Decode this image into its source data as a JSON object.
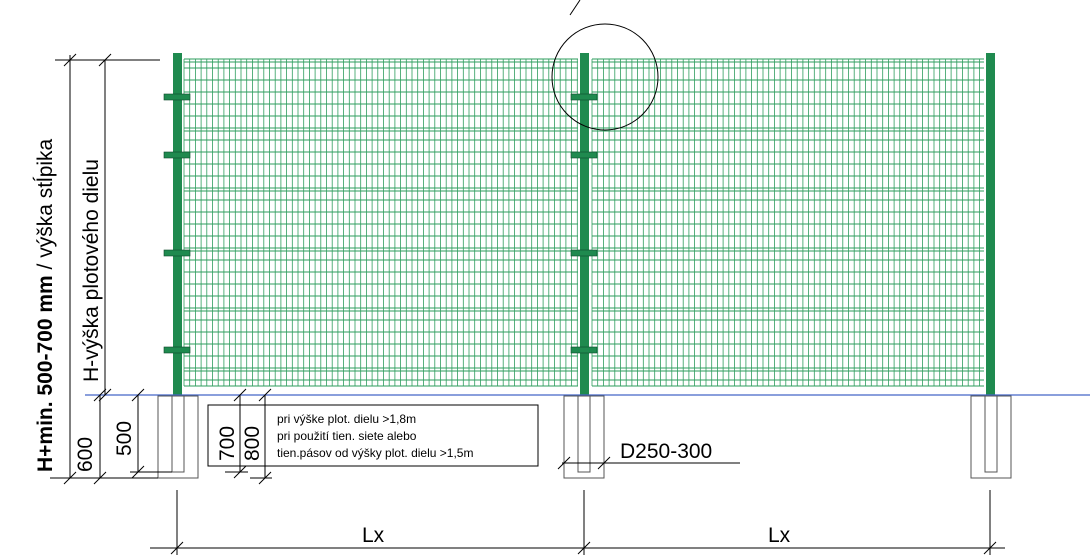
{
  "labels": {
    "total_height_bold": "H+min. 500-700 mm",
    "total_height_rest": " / výška stĺpika",
    "panel_height": "H-výška plotového dielu",
    "dim_600": "600",
    "dim_500": "500",
    "dim_700": "700",
    "dim_800": "800",
    "note_line1": "pri výške plot. dielu >1,8m",
    "note_line2": "pri použití tien. siete alebo",
    "note_line3": "tien.pásov od výšky plot. dielu >1,5m",
    "foundation_diameter": "D250-300",
    "span_left": "Lx",
    "span_right": "Lx"
  },
  "colors": {
    "post": "#1f8a4f",
    "mesh": "#2e9d5e",
    "ground": "#4466c8",
    "ink": "#000000",
    "foundation": "#555555"
  }
}
